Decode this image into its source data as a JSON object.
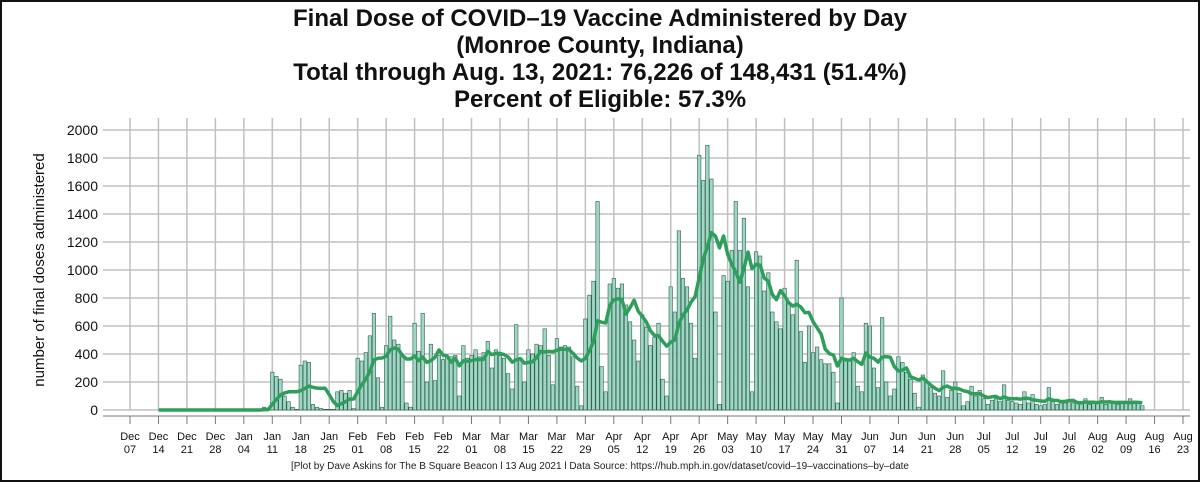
{
  "chart_data": {
    "type": "bar",
    "title_lines": [
      "Final Dose of COVID–19 Vaccine Administered by Day",
      "(Monroe County, Indiana)",
      "Total through Aug. 13, 2021: 76,226 of 148,431 (51.4%)",
      "Percent of Eligible: 57.3%"
    ],
    "ylabel": "number of final doses administered",
    "xlabel": "",
    "ylim": [
      0,
      2000
    ],
    "yticks": [
      0,
      200,
      400,
      600,
      800,
      1000,
      1200,
      1400,
      1600,
      1800,
      2000
    ],
    "xlim": [
      "2020-12-07",
      "2021-08-23"
    ],
    "xticks": [
      [
        "Dec",
        "07"
      ],
      [
        "Dec",
        "14"
      ],
      [
        "Dec",
        "21"
      ],
      [
        "Dec",
        "28"
      ],
      [
        "Jan",
        "04"
      ],
      [
        "Jan",
        "11"
      ],
      [
        "Jan",
        "18"
      ],
      [
        "Jan",
        "25"
      ],
      [
        "Feb",
        "01"
      ],
      [
        "Feb",
        "08"
      ],
      [
        "Feb",
        "15"
      ],
      [
        "Feb",
        "22"
      ],
      [
        "Mar",
        "01"
      ],
      [
        "Mar",
        "08"
      ],
      [
        "Mar",
        "15"
      ],
      [
        "Mar",
        "22"
      ],
      [
        "Mar",
        "29"
      ],
      [
        "Apr",
        "05"
      ],
      [
        "Apr",
        "12"
      ],
      [
        "Apr",
        "19"
      ],
      [
        "Apr",
        "26"
      ],
      [
        "May",
        "03"
      ],
      [
        "May",
        "10"
      ],
      [
        "May",
        "17"
      ],
      [
        "May",
        "24"
      ],
      [
        "May",
        "31"
      ],
      [
        "Jun",
        "07"
      ],
      [
        "Jun",
        "14"
      ],
      [
        "Jun",
        "21"
      ],
      [
        "Jun",
        "28"
      ],
      [
        "Jul",
        "05"
      ],
      [
        "Jul",
        "12"
      ],
      [
        "Jul",
        "19"
      ],
      [
        "Jul",
        "26"
      ],
      [
        "Aug",
        "02"
      ],
      [
        "Aug",
        "09"
      ],
      [
        "Aug",
        "16"
      ],
      [
        "Aug",
        "23"
      ]
    ],
    "grid": true,
    "start_date": "2020-12-14",
    "daily_values": [
      0,
      0,
      0,
      0,
      0,
      0,
      0,
      0,
      0,
      0,
      0,
      0,
      0,
      0,
      0,
      0,
      0,
      0,
      0,
      0,
      0,
      0,
      0,
      0,
      0,
      0,
      20,
      0,
      270,
      240,
      220,
      100,
      60,
      20,
      5,
      320,
      350,
      340,
      40,
      20,
      10,
      5,
      5,
      5,
      130,
      140,
      120,
      140,
      10,
      370,
      350,
      410,
      530,
      690,
      230,
      20,
      460,
      670,
      500,
      470,
      380,
      50,
      20,
      620,
      420,
      690,
      200,
      470,
      210,
      390,
      360,
      380,
      380,
      390,
      100,
      460,
      370,
      390,
      430,
      380,
      410,
      490,
      300,
      430,
      390,
      370,
      260,
      150,
      610,
      360,
      200,
      430,
      400,
      470,
      460,
      580,
      390,
      180,
      510,
      450,
      460,
      450,
      380,
      170,
      30,
      650,
      820,
      920,
      1490,
      310,
      130,
      900,
      940,
      870,
      900,
      750,
      630,
      500,
      350,
      680,
      590,
      460,
      520,
      620,
      220,
      100,
      880,
      700,
      1280,
      940,
      880,
      620,
      370,
      1820,
      1640,
      1890,
      1650,
      700,
      40,
      960,
      920,
      1140,
      1490,
      1140,
      1370,
      880,
      130,
      1130,
      1100,
      850,
      980,
      700,
      630,
      580,
      870,
      760,
      680,
      1070,
      560,
      340,
      600,
      410,
      450,
      360,
      330,
      330,
      270,
      50,
      800,
      370,
      350,
      410,
      170,
      130,
      620,
      600,
      300,
      160,
      660,
      200,
      100,
      150,
      380,
      340,
      270,
      220,
      120,
      20,
      250,
      200,
      160,
      120,
      100,
      280,
      90,
      140,
      200,
      120,
      30,
      60,
      170,
      100,
      140,
      80,
      40,
      70,
      80,
      60,
      180,
      70,
      60,
      50,
      40,
      130,
      50,
      110,
      40,
      30,
      40,
      160,
      60,
      40,
      50,
      50,
      70,
      50,
      50,
      50,
      80,
      40,
      50,
      50,
      90,
      40,
      60,
      50,
      40,
      50,
      50,
      80,
      60,
      50,
      30
    ],
    "trend_line": "7-day moving average",
    "colors": {
      "bar_fill": "#9ed8c4",
      "bar_edge": "#2f5f4e",
      "line": "#2e9e5b",
      "grid": "#c0c0c0"
    }
  },
  "footer": "[Plot by Dave Askins for The B Square Beacon l 13 Aug 2021 l Data Source: https://hub.mph.in.gov/dataset/covid–19–vaccinations–by–date"
}
